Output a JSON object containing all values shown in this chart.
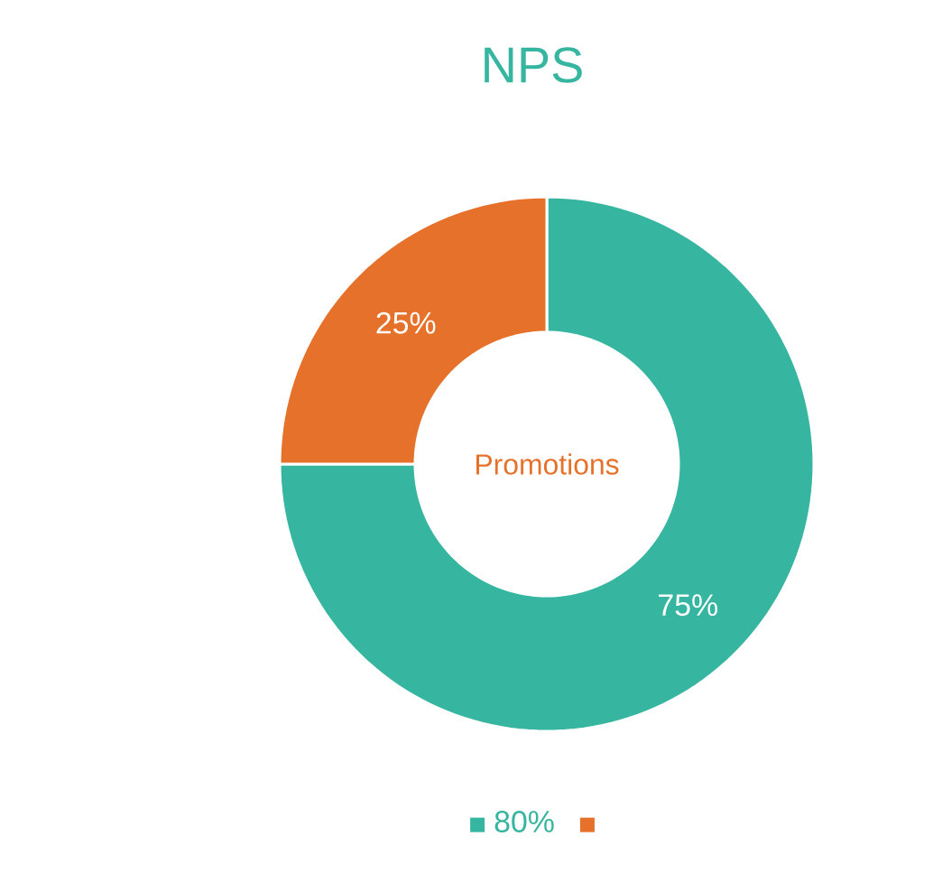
{
  "chart_data": {
    "type": "donut",
    "title": "NPS",
    "categories": [
      "80%",
      null
    ],
    "values": [
      75,
      25
    ],
    "value_labels": [
      "75%",
      "25%"
    ],
    "colors": [
      "#36b5a0",
      "#e5712a"
    ],
    "annotations": [
      "Promotions"
    ],
    "legend": "bottom"
  }
}
